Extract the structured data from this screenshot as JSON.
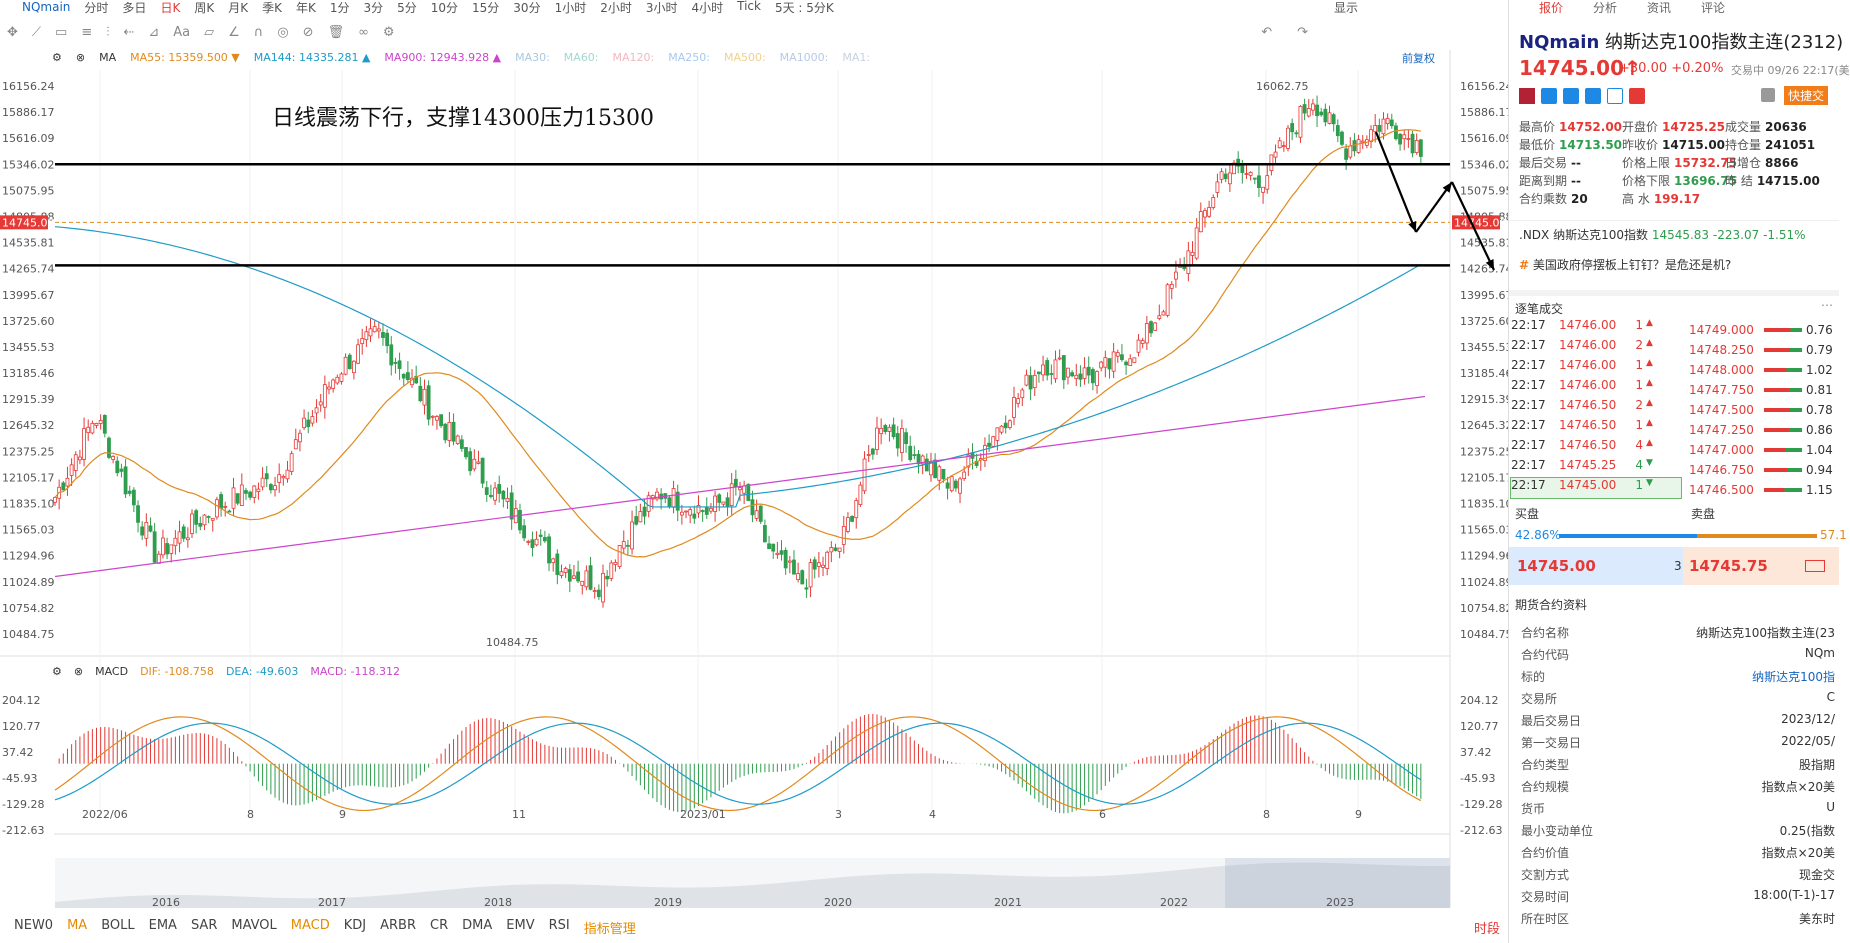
{
  "topbar": {
    "symbol": "NQmain",
    "periods": [
      "分时",
      "多日",
      "日K",
      "周K",
      "月K",
      "季K",
      "年K",
      "1分",
      "3分",
      "5分",
      "10分",
      "15分",
      "30分",
      "1小时",
      "2小时",
      "3小时",
      "4小时",
      "Tick",
      "5天 : 5分K"
    ],
    "active_period": "日K",
    "display_label": "显示"
  },
  "legend": {
    "indicator": "MA",
    "items": [
      {
        "label": "MA55:",
        "value": "15359.500",
        "color": "#e08a1e",
        "arrow": "▼"
      },
      {
        "label": "MA144:",
        "value": "14335.281",
        "color": "#1e9bc8",
        "arrow": "▲"
      },
      {
        "label": "MA900:",
        "value": "12943.928",
        "color": "#cc44cc",
        "arrow": "▲"
      },
      {
        "label": "MA30:",
        "value": "",
        "color": "#aac8e0",
        "arrow": ""
      },
      {
        "label": "MA60:",
        "value": "",
        "color": "#a0d8d0",
        "arrow": ""
      },
      {
        "label": "MA120:",
        "value": "",
        "color": "#f0b8c0",
        "arrow": ""
      },
      {
        "label": "MA250:",
        "value": "",
        "color": "#a8c8f0",
        "arrow": ""
      },
      {
        "label": "MA500:",
        "value": "",
        "color": "#f0d090",
        "arrow": ""
      },
      {
        "label": "MA1000:",
        "value": "",
        "color": "#b8c8e8",
        "arrow": ""
      },
      {
        "label": "MA1:",
        "value": "",
        "color": "#c8d0e0",
        "arrow": ""
      }
    ],
    "adjust": "前复权"
  },
  "note": "日线震荡下行，支撑14300压力15300",
  "price_axis": [
    "16156.24",
    "15886.17",
    "15616.09",
    "15346.02",
    "15075.95",
    "14805.88",
    "14535.81",
    "14265.74",
    "13995.67",
    "13725.60",
    "13455.53",
    "13185.46",
    "12915.39",
    "12645.32",
    "12375.25",
    "12105.17",
    "11835.10",
    "11565.03",
    "11294.96",
    "11024.89",
    "10754.82",
    "10484.75"
  ],
  "current_price_tag": "14745.00",
  "high_mark": "16062.75",
  "low_mark": "10484.75",
  "macd": {
    "name": "MACD",
    "dif": "DIF: -108.758",
    "dea": "DEA: -49.603",
    "macd": "MACD: -118.312",
    "axis": [
      "204.12",
      "120.77",
      "37.42",
      "-45.93",
      "-129.28",
      "-212.63"
    ]
  },
  "x_labels": [
    "2022/06",
    "8",
    "9",
    "11",
    "2023/01",
    "3",
    "4",
    "6",
    "8",
    "9"
  ],
  "year_labels": [
    "2016",
    "2017",
    "2018",
    "2019",
    "2020",
    "2021",
    "2022",
    "2023"
  ],
  "bottombar": {
    "items": [
      "NEW0",
      "MA",
      "BOLL",
      "EMA",
      "SAR",
      "MAVOL",
      "MACD",
      "KDJ",
      "ARBR",
      "CR",
      "DMA",
      "EMV",
      "RSI",
      "指标管理"
    ],
    "right": "时段"
  },
  "right": {
    "tabs": [
      "报价",
      "分析",
      "资讯",
      "评论"
    ],
    "code": "NQmain",
    "name": "纳斯达克100指数主连(2312)",
    "price": "14745.00",
    "arrow": "↑",
    "change": "+30.00  +0.20%",
    "time": "交易中 09/26 22:17(美",
    "quick": "快捷交",
    "quotes": [
      [
        [
          "最高价",
          "14752.00",
          "r"
        ],
        [
          "开盘价",
          "14725.25",
          "r"
        ],
        [
          "成交量",
          "20636",
          "k"
        ]
      ],
      [
        [
          "最低价",
          "14713.50",
          "g"
        ],
        [
          "昨收价",
          "14715.00",
          "k"
        ],
        [
          "持仓量",
          "241051",
          "k"
        ]
      ],
      [
        [
          "最后交易",
          "--",
          "k"
        ],
        [
          "价格上限",
          "15732.75",
          "r"
        ],
        [
          "日增仓",
          "8866",
          "k"
        ]
      ],
      [
        [
          "距离到期",
          "--",
          "k"
        ],
        [
          "价格下限",
          "13696.75",
          "g"
        ],
        [
          "昨 结",
          "14715.00",
          "k"
        ]
      ],
      [
        [
          "合约乘数",
          "20",
          "k"
        ],
        [
          "高 水",
          "199.17",
          "r"
        ],
        [
          "",
          "",
          " k"
        ]
      ]
    ],
    "ndx": {
      "label": ".NDX 纳斯达克100指数",
      "price": "14545.83",
      "chg": "-223.07",
      "pct": "-1.51%"
    },
    "news": "美国政府停摆板上钉钉？是危还是机?",
    "ticks_title": "逐笔成交",
    "ticks": [
      [
        "22:17",
        "14746.00",
        "1",
        "▲"
      ],
      [
        "22:17",
        "14746.00",
        "2",
        "▲"
      ],
      [
        "22:17",
        "14746.00",
        "1",
        "▲"
      ],
      [
        "22:17",
        "14746.00",
        "1",
        "▲"
      ],
      [
        "22:17",
        "14746.50",
        "2",
        "▲"
      ],
      [
        "22:17",
        "14746.50",
        "1",
        "▲"
      ],
      [
        "22:17",
        "14746.50",
        "4",
        "▲"
      ],
      [
        "22:17",
        "14745.25",
        "4",
        "▼"
      ],
      [
        "22:17",
        "14745.00",
        "1",
        "▼"
      ]
    ],
    "book": [
      [
        "14749.000",
        "0.76"
      ],
      [
        "14748.250",
        "0.79"
      ],
      [
        "14748.000",
        "1.02"
      ],
      [
        "14747.750",
        "0.81"
      ],
      [
        "14747.500",
        "0.78"
      ],
      [
        "14747.250",
        "0.86"
      ],
      [
        "14747.000",
        "1.04"
      ],
      [
        "14746.750",
        "0.94"
      ],
      [
        "14746.500",
        "1.15"
      ]
    ],
    "buy_label": "买盘",
    "sell_label": "卖盘",
    "buy_pct": "42.86%",
    "sell_pct": "57.1",
    "bid": "14745.00",
    "bid_size": "3",
    "ask": "14745.75",
    "contract_title": "期货合约资料",
    "contract": [
      [
        "合约名称",
        "纳斯达克100指数主连(23"
      ],
      [
        "合约代码",
        "NQm"
      ],
      [
        "标的",
        "纳斯达克100指"
      ],
      [
        "交易所",
        "C"
      ],
      [
        "最后交易日",
        "2023/12/"
      ],
      [
        "第一交易日",
        "2022/05/"
      ],
      [
        "合约类型",
        "股指期"
      ],
      [
        "合约规模",
        "指数点×20美"
      ],
      [
        "货币",
        "U"
      ],
      [
        "最小变动单位",
        "0.25(指数"
      ],
      [
        "合约价值",
        "指数点×20美"
      ],
      [
        "交割方式",
        "现金交"
      ],
      [
        "交易时间",
        "18:00(T-1)-17"
      ],
      [
        "所在时区",
        "美东时"
      ]
    ]
  },
  "colors": {
    "up": "#e53935",
    "down": "#2e9d4e",
    "ma55": "#e08a1e",
    "ma144": "#1e9bc8",
    "ma900": "#cc44cc"
  }
}
